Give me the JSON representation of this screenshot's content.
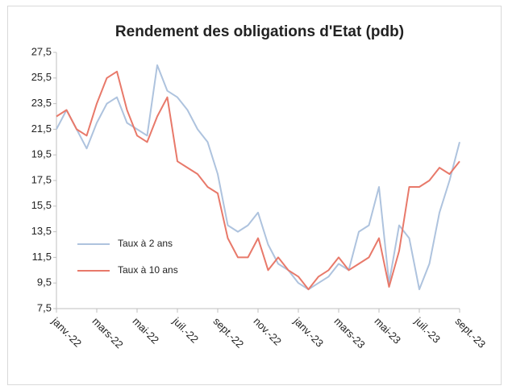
{
  "chart_data": {
    "type": "line",
    "title": "Rendement des obligations d'Etat (pdb)",
    "categories": [
      "janv.-22",
      null,
      null,
      null,
      "mars-22",
      null,
      null,
      null,
      "mai-22",
      null,
      null,
      null,
      "juil.-22",
      null,
      null,
      null,
      "sept.-22",
      null,
      null,
      null,
      "nov.-22",
      null,
      null,
      null,
      "janv.-23",
      null,
      null,
      null,
      "mars-23",
      null,
      null,
      null,
      "mai-23",
      null,
      null,
      null,
      "juil.-23",
      null,
      null,
      null,
      "sept.-23"
    ],
    "series": [
      {
        "name": "Taux à 2 ans",
        "color": "#aec3de",
        "values": [
          21.5,
          23.0,
          21.5,
          20.0,
          22.0,
          23.5,
          24.0,
          22.0,
          21.5,
          21.0,
          26.5,
          24.5,
          24.0,
          23.0,
          21.5,
          20.5,
          18.0,
          14.0,
          13.5,
          14.0,
          15.0,
          12.5,
          11.0,
          10.5,
          9.5,
          9.0,
          9.5,
          10.0,
          11.0,
          10.5,
          13.5,
          14.0,
          17.0,
          9.5,
          14.0,
          13.0,
          9.0,
          11.0,
          15.0,
          17.5,
          20.5
        ]
      },
      {
        "name": "Taux à 10 ans",
        "color": "#e8796a",
        "values": [
          22.5,
          23.0,
          21.5,
          21.0,
          23.5,
          25.5,
          26.0,
          23.0,
          21.0,
          20.5,
          22.5,
          24.0,
          19.0,
          18.5,
          18.0,
          17.0,
          16.5,
          13.0,
          11.5,
          11.5,
          13.0,
          10.5,
          11.5,
          10.5,
          10.0,
          9.0,
          10.0,
          10.5,
          11.5,
          10.5,
          11.0,
          11.5,
          13.0,
          9.2,
          12.0,
          17.0,
          17.0,
          17.5,
          18.5,
          18.0,
          19.0
        ]
      }
    ],
    "ylim": [
      7.5,
      27.5
    ],
    "yticks": [
      {
        "value": 7.5,
        "label": "7,5"
      },
      {
        "value": 9.5,
        "label": "9,5"
      },
      {
        "value": 11.5,
        "label": "11,5"
      },
      {
        "value": 13.5,
        "label": "13,5"
      },
      {
        "value": 15.5,
        "label": "15,5"
      },
      {
        "value": 17.5,
        "label": "17,5"
      },
      {
        "value": 19.5,
        "label": "19,5"
      },
      {
        "value": 21.5,
        "label": "21,5"
      },
      {
        "value": 23.5,
        "label": "23,5"
      },
      {
        "value": 25.5,
        "label": "25,5"
      },
      {
        "value": 27.5,
        "label": "27,5"
      }
    ],
    "grid": false
  }
}
